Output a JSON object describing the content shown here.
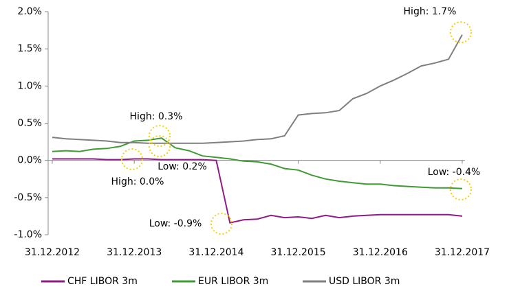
{
  "chart_data": {
    "type": "line",
    "categories": [
      "31.12.2012",
      null,
      null,
      null,
      null,
      null,
      "31.12.2013",
      null,
      null,
      null,
      null,
      null,
      "31.12.2014",
      null,
      null,
      null,
      null,
      null,
      "31.12.2015",
      null,
      null,
      null,
      null,
      null,
      "31.12.2016",
      null,
      null,
      null,
      null,
      null,
      "31.12.2017"
    ],
    "series": [
      {
        "name": "CHF LIBOR 3m",
        "color": "#8e1b83",
        "values": [
          0.02,
          0.02,
          0.02,
          0.02,
          0.01,
          0.01,
          0.02,
          0.02,
          0.01,
          0.01,
          0.01,
          0.01,
          0.0,
          -0.84,
          -0.8,
          -0.79,
          -0.74,
          -0.77,
          -0.76,
          -0.78,
          -0.74,
          -0.77,
          -0.75,
          -0.74,
          -0.73,
          -0.73,
          -0.73,
          -0.73,
          -0.73,
          -0.73,
          -0.75
        ]
      },
      {
        "name": "EUR LIBOR 3m",
        "color": "#3f9a34",
        "values": [
          0.12,
          0.13,
          0.12,
          0.15,
          0.16,
          0.19,
          0.26,
          0.27,
          0.3,
          0.17,
          0.13,
          0.06,
          0.04,
          0.02,
          -0.01,
          -0.02,
          -0.05,
          -0.11,
          -0.13,
          -0.2,
          -0.25,
          -0.28,
          -0.3,
          -0.32,
          -0.32,
          -0.34,
          -0.35,
          -0.36,
          -0.37,
          -0.37,
          -0.38
        ]
      },
      {
        "name": "USD LIBOR 3m",
        "color": "#7f7f7f",
        "values": [
          0.31,
          0.29,
          0.28,
          0.27,
          0.26,
          0.24,
          0.24,
          0.23,
          0.23,
          0.23,
          0.23,
          0.23,
          0.24,
          0.25,
          0.26,
          0.28,
          0.29,
          0.33,
          0.61,
          0.63,
          0.64,
          0.67,
          0.83,
          0.9,
          1.0,
          1.08,
          1.17,
          1.27,
          1.31,
          1.36,
          1.69
        ]
      }
    ],
    "ylim": [
      -1.0,
      2.0
    ],
    "yticks": [
      {
        "value": -1.0,
        "label": "-1.0%"
      },
      {
        "value": -0.5,
        "label": "-0.5%"
      },
      {
        "value": 0.0,
        "label": "0.0%"
      },
      {
        "value": 0.5,
        "label": "0.5%"
      },
      {
        "value": 1.0,
        "label": "1.0%"
      },
      {
        "value": 1.5,
        "label": "1.5%"
      },
      {
        "value": 2.0,
        "label": "2.0%"
      }
    ],
    "annotations": [
      "High: 1.7%",
      "High: 0.3%",
      "Low: 0.2%",
      "High: 0.0%",
      "Low: -0.9%",
      "Low: -0.4%"
    ],
    "legend": "bottom"
  }
}
